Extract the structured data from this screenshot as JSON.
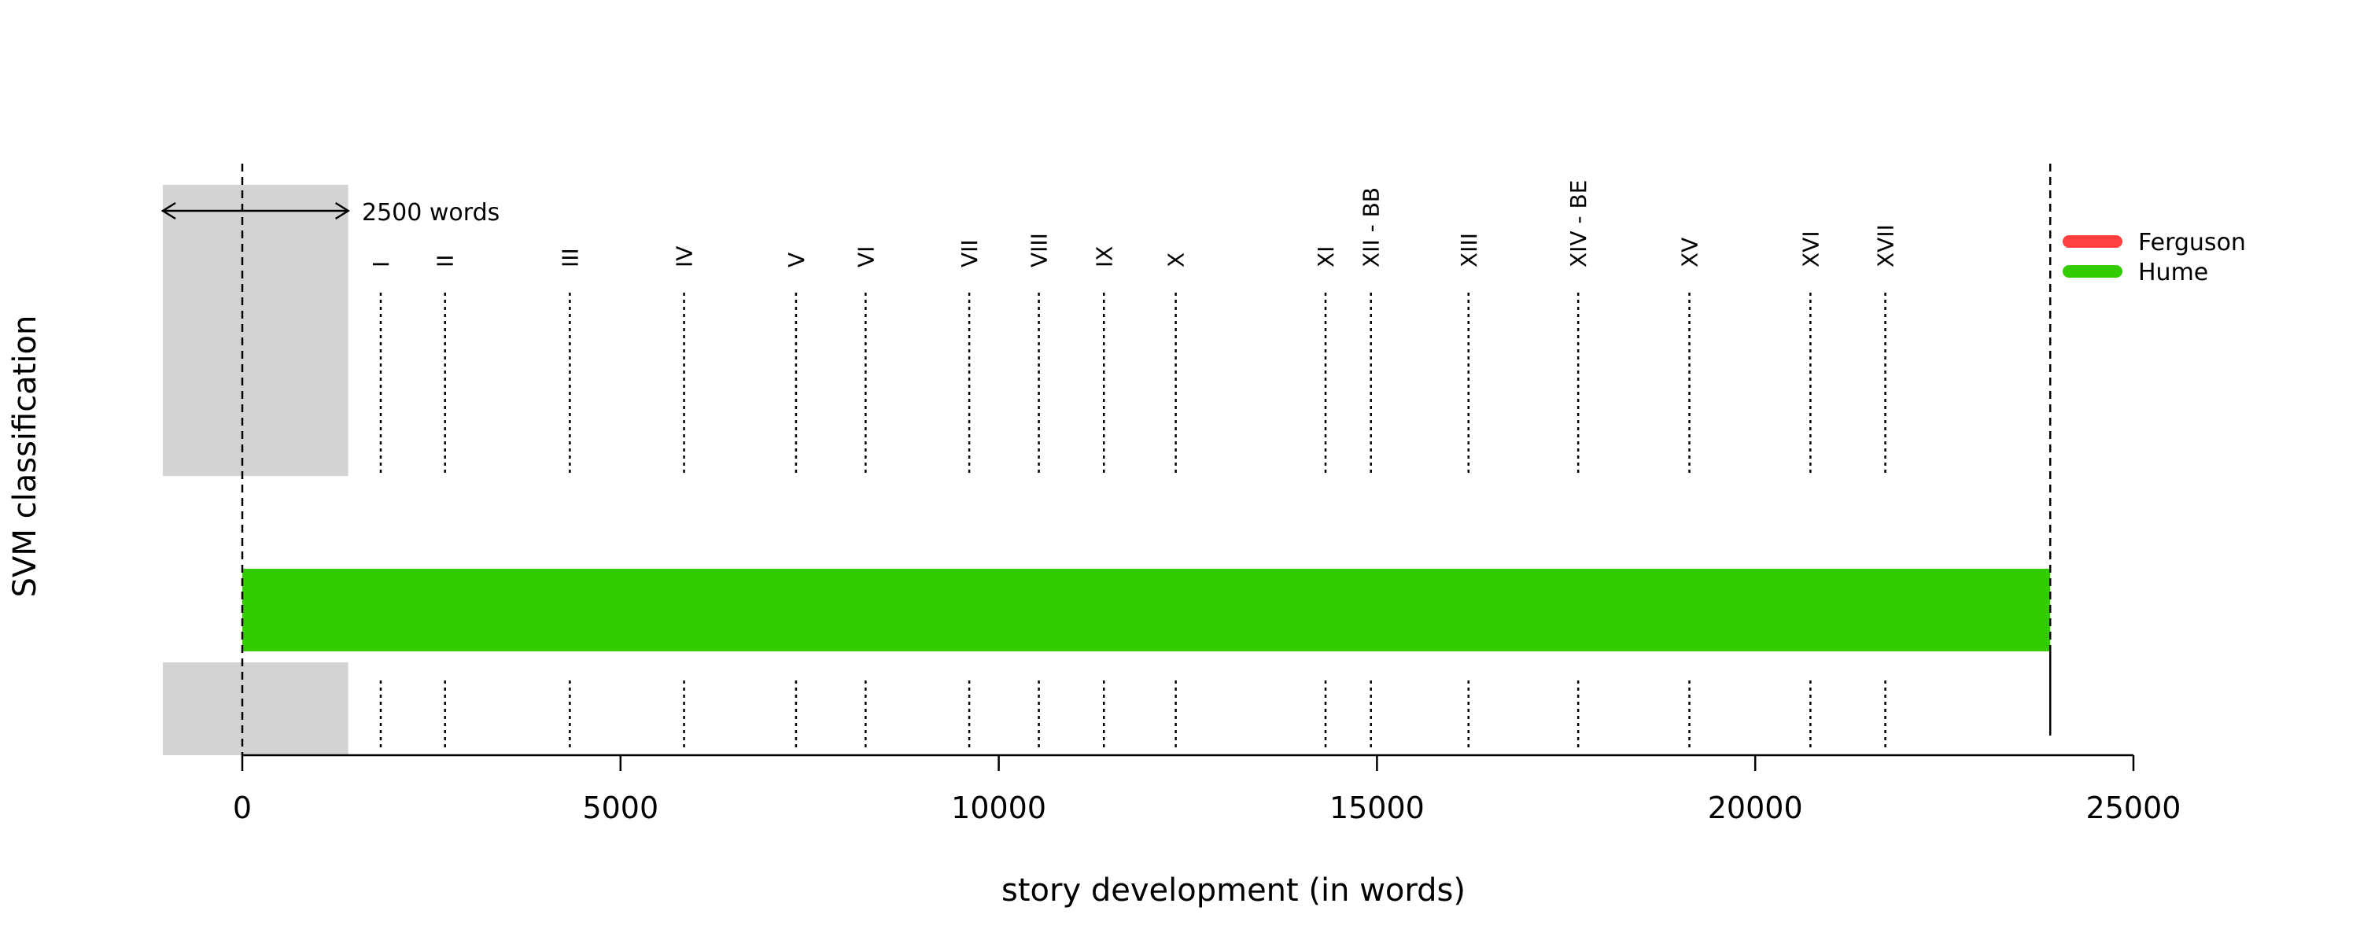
{
  "chart_data": {
    "type": "bar",
    "xlabel": "story development (in words)",
    "ylabel": "SVM classification",
    "xlim": [
      -1000,
      25000
    ],
    "xticks": [
      0,
      5000,
      10000,
      15000,
      20000,
      25000
    ],
    "xtick_labels": [
      "0",
      "5000",
      "10000",
      "15000",
      "20000",
      "25000"
    ],
    "text_end": 23900,
    "window": {
      "start": -1050,
      "end": 1400,
      "label": "2500 words"
    },
    "chapters": [
      {
        "label": "I",
        "x": 1830
      },
      {
        "label": "II",
        "x": 2680
      },
      {
        "label": "III",
        "x": 4330
      },
      {
        "label": "IV",
        "x": 5840
      },
      {
        "label": "V",
        "x": 7320
      },
      {
        "label": "VI",
        "x": 8240
      },
      {
        "label": "VII",
        "x": 9610
      },
      {
        "label": "VIII",
        "x": 10530
      },
      {
        "label": "IX",
        "x": 11390
      },
      {
        "label": "X",
        "x": 12340
      },
      {
        "label": "XI",
        "x": 14320
      },
      {
        "label": "XII - BB",
        "x": 14920
      },
      {
        "label": "XIII",
        "x": 16210
      },
      {
        "label": "XIV - BE",
        "x": 17660
      },
      {
        "label": "XV",
        "x": 19130
      },
      {
        "label": "XVI",
        "x": 20730
      },
      {
        "label": "XVII",
        "x": 21720
      }
    ],
    "segments": [
      {
        "start": 0,
        "end": 23900,
        "class": "Hume"
      }
    ],
    "legend": {
      "position": "right",
      "entries": [
        {
          "name": "Ferguson",
          "color": "#ff4040"
        },
        {
          "name": "Hume",
          "color": "#33cc00"
        }
      ]
    }
  }
}
